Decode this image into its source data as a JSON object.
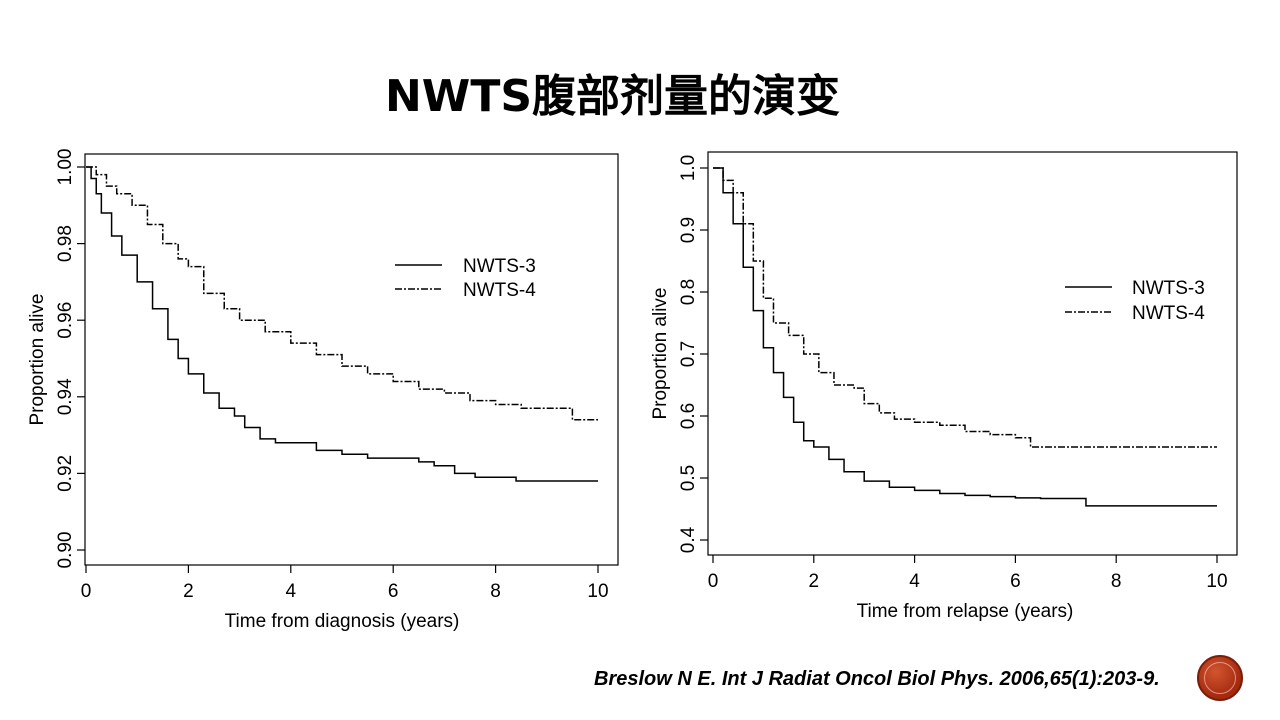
{
  "slide": {
    "title": "NWTS腹部剂量的演变",
    "citation": "Breslow N E. Int J Radiat Oncol Biol Phys. 2006,65(1):203-9."
  },
  "logo": {
    "color": "#b83a1a",
    "icon": "circle-emblem-icon"
  },
  "chart_data": [
    {
      "type": "line",
      "xlabel": "Time from diagnosis (years)",
      "ylabel": "Proportion alive",
      "xlim": [
        0,
        10
      ],
      "ylim": [
        0.9,
        1.0
      ],
      "xticks": [
        0,
        2,
        4,
        6,
        8,
        10
      ],
      "xtick_labels": [
        "0",
        "2",
        "4",
        "6",
        "8",
        "10"
      ],
      "yticks": [
        0.9,
        0.92,
        0.94,
        0.96,
        0.98,
        1.0
      ],
      "ytick_labels": [
        "0.90",
        "0.92",
        "0.94",
        "0.96",
        "0.98",
        "1.00"
      ],
      "legend_position": "upper-right",
      "series": [
        {
          "name": "NWTS-3",
          "style": "solid",
          "x": [
            0,
            0.1,
            0.2,
            0.3,
            0.5,
            0.7,
            1.0,
            1.3,
            1.6,
            1.8,
            2.0,
            2.3,
            2.6,
            2.9,
            3.1,
            3.4,
            3.7,
            4.0,
            4.5,
            5.0,
            5.5,
            6.0,
            6.5,
            6.8,
            7.2,
            7.6,
            8.0,
            8.4,
            9.0,
            10.0
          ],
          "y": [
            1.0,
            0.997,
            0.993,
            0.988,
            0.982,
            0.977,
            0.97,
            0.963,
            0.955,
            0.95,
            0.946,
            0.941,
            0.937,
            0.935,
            0.932,
            0.929,
            0.928,
            0.928,
            0.926,
            0.925,
            0.924,
            0.924,
            0.923,
            0.922,
            0.92,
            0.919,
            0.919,
            0.918,
            0.918,
            0.918
          ]
        },
        {
          "name": "NWTS-4",
          "style": "dash-dot",
          "x": [
            0,
            0.2,
            0.4,
            0.6,
            0.9,
            1.2,
            1.5,
            1.8,
            2.0,
            2.3,
            2.7,
            3.0,
            3.5,
            4.0,
            4.5,
            5.0,
            5.5,
            6.0,
            6.5,
            7.0,
            7.5,
            8.0,
            8.5,
            9.0,
            9.5,
            10.0
          ],
          "y": [
            1.0,
            0.998,
            0.995,
            0.993,
            0.99,
            0.985,
            0.98,
            0.976,
            0.974,
            0.967,
            0.963,
            0.96,
            0.957,
            0.954,
            0.951,
            0.948,
            0.946,
            0.944,
            0.942,
            0.941,
            0.939,
            0.938,
            0.937,
            0.937,
            0.934,
            0.934
          ]
        }
      ]
    },
    {
      "type": "line",
      "xlabel": "Time from relapse (years)",
      "ylabel": "Proportion alive",
      "xlim": [
        0,
        10
      ],
      "ylim": [
        0.4,
        1.0
      ],
      "xticks": [
        0,
        2,
        4,
        6,
        8,
        10
      ],
      "xtick_labels": [
        "0",
        "2",
        "4",
        "6",
        "8",
        "10"
      ],
      "yticks": [
        0.4,
        0.5,
        0.6,
        0.7,
        0.8,
        0.9,
        1.0
      ],
      "ytick_labels": [
        "0.4",
        "0.5",
        "0.6",
        "0.7",
        "0.8",
        "0.9",
        "1.0"
      ],
      "legend_position": "upper-right",
      "series": [
        {
          "name": "NWTS-3",
          "style": "solid",
          "x": [
            0,
            0.2,
            0.4,
            0.6,
            0.8,
            1.0,
            1.2,
            1.4,
            1.6,
            1.8,
            2.0,
            2.3,
            2.6,
            3.0,
            3.5,
            4.0,
            4.5,
            5.0,
            5.5,
            6.0,
            6.5,
            7.0,
            7.4,
            8.0,
            9.0,
            10.0
          ],
          "y": [
            1.0,
            0.96,
            0.91,
            0.84,
            0.77,
            0.71,
            0.67,
            0.63,
            0.59,
            0.56,
            0.55,
            0.53,
            0.51,
            0.495,
            0.485,
            0.48,
            0.475,
            0.472,
            0.47,
            0.468,
            0.467,
            0.467,
            0.455,
            0.455,
            0.455,
            0.455
          ]
        },
        {
          "name": "NWTS-4",
          "style": "dash-dot",
          "x": [
            0,
            0.2,
            0.4,
            0.6,
            0.8,
            1.0,
            1.2,
            1.5,
            1.8,
            2.1,
            2.4,
            2.8,
            3.0,
            3.3,
            3.6,
            4.0,
            4.5,
            5.0,
            5.5,
            6.0,
            6.3,
            7.0,
            8.0,
            9.0,
            10.0
          ],
          "y": [
            1.0,
            0.98,
            0.96,
            0.91,
            0.85,
            0.79,
            0.75,
            0.73,
            0.7,
            0.67,
            0.65,
            0.645,
            0.62,
            0.605,
            0.595,
            0.59,
            0.585,
            0.575,
            0.57,
            0.565,
            0.55,
            0.55,
            0.55,
            0.55,
            0.55
          ]
        }
      ]
    }
  ]
}
